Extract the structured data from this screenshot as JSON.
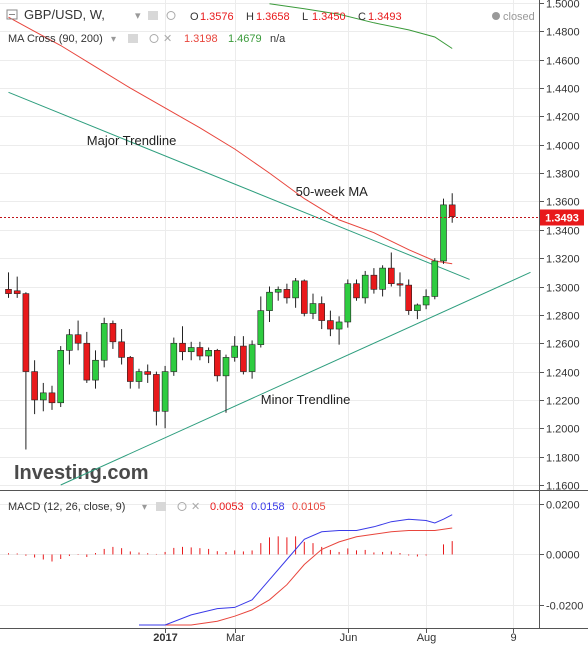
{
  "header": {
    "symbol": "GBP/USD, W,",
    "ohlc": [
      {
        "key": "O",
        "value": "1.3576"
      },
      {
        "key": "H",
        "value": "1.3658"
      },
      {
        "key": "L",
        "value": "1.3450"
      },
      {
        "key": "C",
        "value": "1.3493"
      }
    ],
    "status": "closed"
  },
  "indicator_legend": {
    "label": "MA Cross (90, 200)",
    "values": [
      "1.3198",
      "1.4679",
      "n/a"
    ]
  },
  "macd_legend": {
    "label": "MACD (12, 26, close, 9)",
    "values": [
      "0.0053",
      "0.0158",
      "0.0105"
    ]
  },
  "price_badge": "1.3493",
  "watermark": "Investing.com",
  "colors": {
    "up": "#2ecc40",
    "down": "#e8191b",
    "ma_fast": "#e8453c",
    "ma_slow": "#3a9a3a",
    "trendline": "#2e9e7e",
    "macd_line": "#3a3ae8",
    "signal_line": "#e8453c",
    "histogram": "#e8191b"
  },
  "chart_data": [
    {
      "type": "candlestick",
      "title": "GBP/USD, W,",
      "ylim": [
        1.16,
        1.5
      ],
      "y_ticks": [
        "1.1600",
        "1.1800",
        "1.2000",
        "1.2200",
        "1.2400",
        "1.2600",
        "1.2800",
        "1.3000",
        "1.3200",
        "1.3400",
        "1.3600",
        "1.3800",
        "1.4000",
        "1.4200",
        "1.4400",
        "1.4600",
        "1.4800",
        "1.5000"
      ],
      "x_ticks": [
        {
          "label": "2017",
          "week": 18
        },
        {
          "label": "Mar",
          "week": 26
        },
        {
          "label": "Jun",
          "week": 39
        },
        {
          "label": "Aug",
          "week": 48
        },
        {
          "label": "9",
          "week": 58
        }
      ],
      "candles": [
        {
          "o": 1.298,
          "h": 1.31,
          "l": 1.292,
          "c": 1.295
        },
        {
          "o": 1.297,
          "h": 1.307,
          "l": 1.292,
          "c": 1.295
        },
        {
          "o": 1.295,
          "h": 1.296,
          "l": 1.185,
          "c": 1.24
        },
        {
          "o": 1.24,
          "h": 1.248,
          "l": 1.21,
          "c": 1.22
        },
        {
          "o": 1.22,
          "h": 1.232,
          "l": 1.212,
          "c": 1.225
        },
        {
          "o": 1.225,
          "h": 1.23,
          "l": 1.213,
          "c": 1.218
        },
        {
          "o": 1.218,
          "h": 1.258,
          "l": 1.215,
          "c": 1.255
        },
        {
          "o": 1.255,
          "h": 1.27,
          "l": 1.245,
          "c": 1.266
        },
        {
          "o": 1.266,
          "h": 1.276,
          "l": 1.255,
          "c": 1.26
        },
        {
          "o": 1.26,
          "h": 1.268,
          "l": 1.232,
          "c": 1.234
        },
        {
          "o": 1.234,
          "h": 1.255,
          "l": 1.228,
          "c": 1.248
        },
        {
          "o": 1.248,
          "h": 1.278,
          "l": 1.243,
          "c": 1.274
        },
        {
          "o": 1.274,
          "h": 1.276,
          "l": 1.256,
          "c": 1.261
        },
        {
          "o": 1.261,
          "h": 1.27,
          "l": 1.245,
          "c": 1.25
        },
        {
          "o": 1.25,
          "h": 1.251,
          "l": 1.228,
          "c": 1.233
        },
        {
          "o": 1.233,
          "h": 1.242,
          "l": 1.228,
          "c": 1.24
        },
        {
          "o": 1.24,
          "h": 1.245,
          "l": 1.232,
          "c": 1.238
        },
        {
          "o": 1.238,
          "h": 1.24,
          "l": 1.202,
          "c": 1.212
        },
        {
          "o": 1.212,
          "h": 1.244,
          "l": 1.2,
          "c": 1.24
        },
        {
          "o": 1.24,
          "h": 1.264,
          "l": 1.237,
          "c": 1.26
        },
        {
          "o": 1.26,
          "h": 1.272,
          "l": 1.248,
          "c": 1.254
        },
        {
          "o": 1.254,
          "h": 1.261,
          "l": 1.248,
          "c": 1.257
        },
        {
          "o": 1.257,
          "h": 1.261,
          "l": 1.248,
          "c": 1.251
        },
        {
          "o": 1.251,
          "h": 1.257,
          "l": 1.246,
          "c": 1.255
        },
        {
          "o": 1.255,
          "h": 1.256,
          "l": 1.233,
          "c": 1.237
        },
        {
          "o": 1.237,
          "h": 1.252,
          "l": 1.211,
          "c": 1.25
        },
        {
          "o": 1.25,
          "h": 1.265,
          "l": 1.247,
          "c": 1.258
        },
        {
          "o": 1.258,
          "h": 1.265,
          "l": 1.238,
          "c": 1.24
        },
        {
          "o": 1.24,
          "h": 1.262,
          "l": 1.235,
          "c": 1.259
        },
        {
          "o": 1.259,
          "h": 1.293,
          "l": 1.257,
          "c": 1.283
        },
        {
          "o": 1.283,
          "h": 1.3,
          "l": 1.275,
          "c": 1.296
        },
        {
          "o": 1.296,
          "h": 1.3,
          "l": 1.29,
          "c": 1.298
        },
        {
          "o": 1.298,
          "h": 1.302,
          "l": 1.288,
          "c": 1.292
        },
        {
          "o": 1.292,
          "h": 1.306,
          "l": 1.285,
          "c": 1.304
        },
        {
          "o": 1.304,
          "h": 1.305,
          "l": 1.279,
          "c": 1.281
        },
        {
          "o": 1.281,
          "h": 1.295,
          "l": 1.277,
          "c": 1.288
        },
        {
          "o": 1.288,
          "h": 1.293,
          "l": 1.27,
          "c": 1.276
        },
        {
          "o": 1.276,
          "h": 1.283,
          "l": 1.265,
          "c": 1.27
        },
        {
          "o": 1.27,
          "h": 1.279,
          "l": 1.259,
          "c": 1.275
        },
        {
          "o": 1.275,
          "h": 1.305,
          "l": 1.271,
          "c": 1.302
        },
        {
          "o": 1.302,
          "h": 1.305,
          "l": 1.29,
          "c": 1.292
        },
        {
          "o": 1.292,
          "h": 1.311,
          "l": 1.288,
          "c": 1.308
        },
        {
          "o": 1.308,
          "h": 1.313,
          "l": 1.295,
          "c": 1.298
        },
        {
          "o": 1.298,
          "h": 1.315,
          "l": 1.293,
          "c": 1.313
        },
        {
          "o": 1.313,
          "h": 1.324,
          "l": 1.3,
          "c": 1.302
        },
        {
          "o": 1.302,
          "h": 1.31,
          "l": 1.293,
          "c": 1.301
        },
        {
          "o": 1.301,
          "h": 1.305,
          "l": 1.28,
          "c": 1.283
        },
        {
          "o": 1.283,
          "h": 1.288,
          "l": 1.277,
          "c": 1.287
        },
        {
          "o": 1.287,
          "h": 1.298,
          "l": 1.284,
          "c": 1.293
        },
        {
          "o": 1.293,
          "h": 1.32,
          "l": 1.291,
          "c": 1.318
        },
        {
          "o": 1.318,
          "h": 1.362,
          "l": 1.316,
          "c": 1.3576
        },
        {
          "o": 1.3576,
          "h": 1.3658,
          "l": 1.345,
          "c": 1.3493
        }
      ],
      "ma_fast": [
        [
          0,
          1.49
        ],
        [
          3,
          1.48
        ],
        [
          6,
          1.47
        ],
        [
          10,
          1.455
        ],
        [
          14,
          1.44
        ],
        [
          18,
          1.426
        ],
        [
          22,
          1.412
        ],
        [
          26,
          1.397
        ],
        [
          30,
          1.38
        ],
        [
          34,
          1.362
        ],
        [
          38,
          1.347
        ],
        [
          42,
          1.338
        ],
        [
          46,
          1.326
        ],
        [
          49,
          1.318
        ],
        [
          51,
          1.316
        ]
      ],
      "ma_slow": [
        [
          30,
          1.4995
        ],
        [
          34,
          1.496
        ],
        [
          38,
          1.492
        ],
        [
          42,
          1.486
        ],
        [
          46,
          1.481
        ],
        [
          49,
          1.476
        ],
        [
          51,
          1.4679
        ]
      ],
      "trendlines": [
        {
          "label": "Major Trendline",
          "from": [
            0,
            1.437
          ],
          "to": [
            53,
            1.305
          ]
        },
        {
          "label": "Minor Trendline",
          "from": [
            6,
            1.16
          ],
          "to": [
            60,
            1.31
          ]
        }
      ],
      "annotations": [
        {
          "text": "Major Trendline",
          "week": 9,
          "price": 1.4
        },
        {
          "text": "50-week MA",
          "week": 33,
          "price": 1.364
        },
        {
          "text": "Minor Trendline",
          "week": 29,
          "price": 1.217
        }
      ],
      "last_price": 1.3493
    },
    {
      "type": "line",
      "title": "MACD (12, 26, close, 9)",
      "ylim": [
        -0.028,
        0.024
      ],
      "y_ticks": [
        "0.0200",
        "0.0000",
        "-0.0200"
      ],
      "histogram": [
        0.0005,
        0.0004,
        -0.0005,
        -0.0012,
        -0.002,
        -0.0028,
        -0.0018,
        -0.0006,
        -0.0002,
        -0.001,
        0.0006,
        0.0022,
        0.003,
        0.0025,
        0.0012,
        0.0008,
        0.0005,
        0.0002,
        0.001,
        0.0026,
        0.003,
        0.0028,
        0.0025,
        0.0022,
        0.0013,
        0.001,
        0.0016,
        0.0012,
        0.0016,
        0.0045,
        0.0068,
        0.0072,
        0.0068,
        0.0072,
        0.005,
        0.0045,
        0.003,
        0.0018,
        0.001,
        0.0024,
        0.0016,
        0.0018,
        0.0008,
        0.001,
        0.0012,
        0.0006,
        -0.0004,
        -0.0008,
        -0.0004,
        0.0,
        0.004,
        0.0053
      ],
      "macd": [
        [
          15,
          -0.03
        ],
        [
          18,
          -0.028
        ],
        [
          21,
          -0.024
        ],
        [
          24,
          -0.0215
        ],
        [
          26,
          -0.021
        ],
        [
          28,
          -0.018
        ],
        [
          30,
          -0.01
        ],
        [
          32,
          -0.002
        ],
        [
          34,
          0.006
        ],
        [
          36,
          0.009
        ],
        [
          38,
          0.0095
        ],
        [
          40,
          0.0095
        ],
        [
          42,
          0.011
        ],
        [
          44,
          0.013
        ],
        [
          46,
          0.014
        ],
        [
          48,
          0.0135
        ],
        [
          49,
          0.0125
        ],
        [
          50,
          0.014
        ],
        [
          51,
          0.0158
        ]
      ],
      "signal": [
        [
          15,
          -0.035
        ],
        [
          18,
          -0.033
        ],
        [
          21,
          -0.03
        ],
        [
          24,
          -0.0265
        ],
        [
          26,
          -0.0245
        ],
        [
          28,
          -0.022
        ],
        [
          30,
          -0.018
        ],
        [
          32,
          -0.012
        ],
        [
          34,
          -0.004
        ],
        [
          36,
          0.002
        ],
        [
          38,
          0.005
        ],
        [
          40,
          0.007
        ],
        [
          42,
          0.008
        ],
        [
          44,
          0.009
        ],
        [
          46,
          0.0095
        ],
        [
          48,
          0.0095
        ],
        [
          49,
          0.0095
        ],
        [
          50,
          0.01
        ],
        [
          51,
          0.0105
        ]
      ]
    }
  ]
}
